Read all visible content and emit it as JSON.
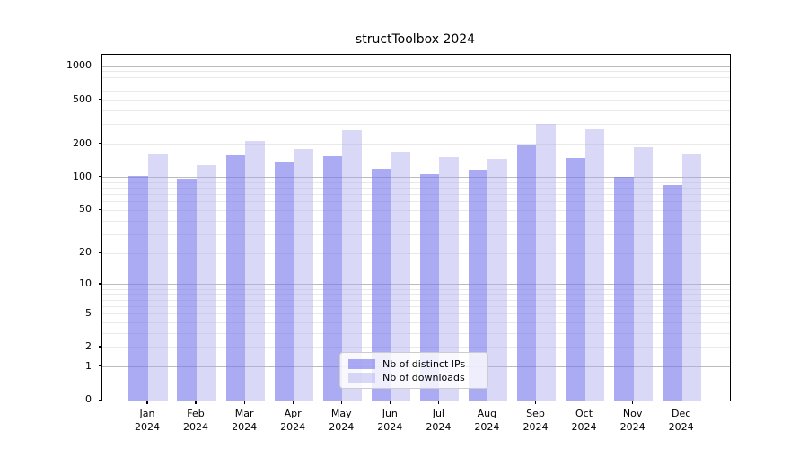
{
  "figure": {
    "background": "#ffffff"
  },
  "chart_data": {
    "type": "bar",
    "title": "structToolbox 2024",
    "categories": [
      "Jan 2024",
      "Feb 2024",
      "Mar 2024",
      "Apr 2024",
      "May 2024",
      "Jun 2024",
      "Jul 2024",
      "Aug 2024",
      "Sep 2024",
      "Oct 2024",
      "Nov 2024",
      "Dec 2024"
    ],
    "series": [
      {
        "name": "Nb of distinct IPs",
        "color": "rgba(119,119,238,0.62)",
        "values": [
          104,
          97,
          158,
          138,
          156,
          120,
          107,
          117,
          196,
          151,
          102,
          85
        ]
      },
      {
        "name": "Nb of downloads",
        "color": "rgba(170,170,238,0.45)",
        "values": [
          165,
          130,
          213,
          182,
          266,
          172,
          153,
          148,
          305,
          272,
          188,
          164
        ]
      }
    ],
    "yscale": "log1p",
    "ylim": [
      0,
      1280
    ],
    "yticks": [
      0,
      1,
      2,
      5,
      10,
      20,
      50,
      100,
      200,
      500,
      1000
    ],
    "grid": {
      "major_values": [
        1,
        10,
        100,
        1000
      ],
      "minor_values": [
        2,
        3,
        4,
        5,
        6,
        7,
        8,
        9,
        20,
        30,
        40,
        50,
        60,
        70,
        80,
        90,
        200,
        300,
        400,
        500,
        600,
        700,
        800,
        900
      ],
      "major_color": "#bbbbbb",
      "minor_color": "#e9e9e9"
    },
    "legend": {
      "position": "lower center",
      "entries": [
        "Nb of distinct IPs",
        "Nb of downloads"
      ]
    },
    "axis_color": "#000000",
    "xlabel": "",
    "ylabel": ""
  }
}
